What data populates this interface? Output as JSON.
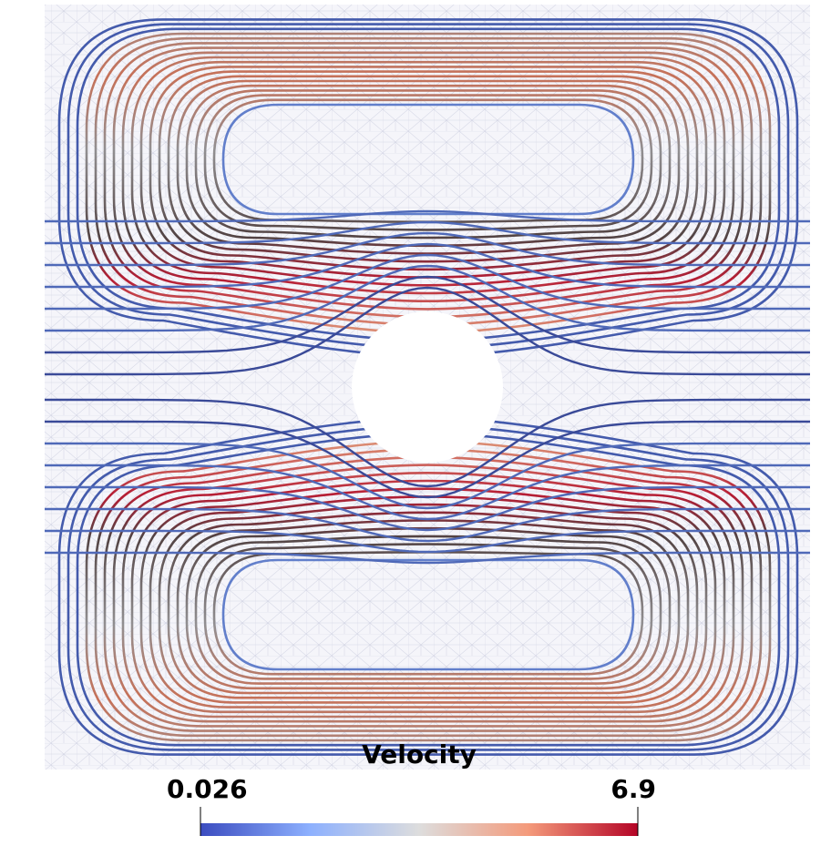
{
  "colorbar": {
    "title": "Velocity",
    "range": [
      0.026,
      6.9
    ]
  }
}
